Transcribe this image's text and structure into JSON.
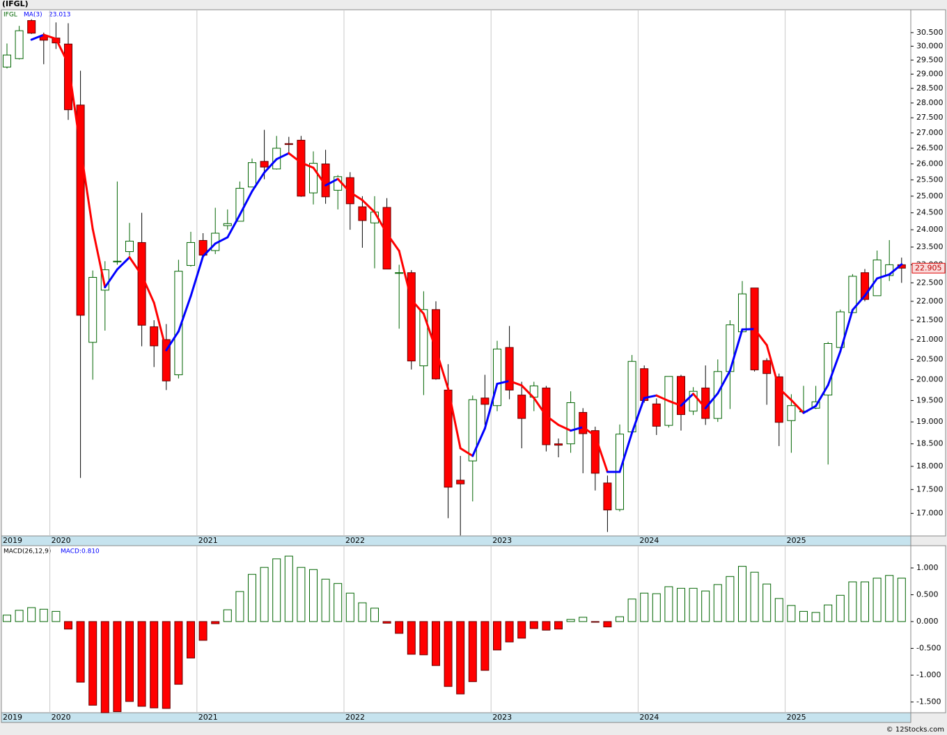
{
  "title": "(IFGL)",
  "footer": "© 12Stocks.com",
  "chart_data": [
    {
      "type": "candlestick",
      "symbol": "IFGL",
      "ma_label": "MA(3)",
      "ma_value": 23.013,
      "last_price": 22.905,
      "log_scale": true,
      "up_color": "#006400",
      "down_color": "#ff0000",
      "ma_up_color": "#0000ff",
      "ma_down_color": "#ff0000",
      "categories": [
        "2019",
        null,
        null,
        null,
        "2020",
        null,
        null,
        null,
        null,
        null,
        null,
        null,
        null,
        null,
        null,
        null,
        "2021",
        null,
        null,
        null,
        null,
        null,
        null,
        null,
        null,
        null,
        null,
        null,
        "2022",
        null,
        null,
        null,
        null,
        null,
        null,
        null,
        null,
        null,
        null,
        null,
        "2023",
        null,
        null,
        null,
        null,
        null,
        null,
        null,
        null,
        null,
        null,
        null,
        "2024",
        null,
        null,
        null,
        null,
        null,
        null,
        null,
        null,
        null,
        null,
        null,
        "2025",
        null,
        null,
        null,
        null,
        null,
        null,
        null,
        null,
        null
      ],
      "open": [
        29.25,
        29.55,
        30.95,
        30.38,
        30.3,
        30.08,
        27.93,
        20.93,
        22.3,
        23.1,
        23.37,
        23.63,
        21.33,
        21.0,
        20.12,
        22.98,
        23.69,
        23.4,
        24.12,
        24.25,
        25.28,
        26.08,
        25.84,
        26.65,
        26.76,
        25.1,
        26.0,
        25.18,
        25.57,
        24.68,
        24.2,
        24.66,
        22.76,
        22.78,
        20.34,
        21.78,
        19.75,
        17.7,
        18.12,
        19.56,
        19.38,
        20.8,
        19.63,
        19.58,
        19.8,
        18.5,
        18.5,
        19.22,
        18.8,
        17.64,
        17.08,
        18.77,
        20.27,
        19.42,
        18.92,
        20.08,
        19.25,
        19.8,
        19.08,
        20.2,
        21.2,
        22.36,
        20.47,
        20.07,
        19.03,
        19.25,
        19.32,
        19.63,
        20.8,
        21.7,
        22.78,
        22.15,
        22.7,
        23.0
      ],
      "high": [
        30.1,
        30.75,
        31.0,
        30.5,
        30.88,
        30.85,
        29.12,
        22.84,
        23.1,
        25.45,
        24.2,
        24.5,
        21.5,
        21.4,
        23.14,
        23.94,
        23.9,
        24.65,
        24.6,
        25.45,
        26.17,
        27.1,
        26.9,
        26.87,
        26.9,
        26.4,
        26.45,
        25.65,
        25.74,
        25.0,
        25.0,
        24.94,
        23.0,
        22.85,
        22.27,
        22.0,
        20.38,
        18.23,
        19.62,
        20.12,
        20.97,
        21.35,
        19.95,
        19.95,
        19.85,
        18.62,
        19.72,
        19.32,
        18.89,
        17.8,
        18.94,
        20.61,
        20.35,
        19.55,
        20.08,
        20.12,
        19.82,
        20.35,
        20.5,
        21.5,
        22.55,
        22.36,
        20.53,
        20.15,
        19.65,
        19.85,
        19.85,
        20.94,
        21.78,
        22.74,
        22.88,
        23.4,
        23.7,
        23.2
      ],
      "low": [
        29.2,
        29.52,
        30.45,
        29.35,
        29.9,
        27.43,
        17.75,
        20.0,
        21.23,
        23.0,
        23.25,
        20.83,
        20.31,
        19.75,
        20.03,
        22.95,
        23.25,
        23.3,
        24.0,
        24.25,
        25.28,
        25.52,
        25.82,
        26.3,
        24.98,
        24.75,
        24.77,
        24.6,
        24.0,
        23.48,
        22.9,
        22.88,
        21.28,
        20.25,
        19.63,
        20.0,
        16.9,
        16.55,
        17.25,
        18.93,
        19.25,
        19.53,
        18.4,
        19.25,
        18.33,
        18.2,
        18.3,
        17.85,
        17.48,
        16.62,
        17.04,
        18.74,
        19.45,
        18.7,
        18.87,
        18.8,
        19.16,
        18.93,
        19.0,
        19.3,
        21.2,
        20.2,
        19.4,
        18.45,
        18.3,
        19.22,
        19.3,
        18.04,
        20.76,
        21.7,
        22.0,
        22.15,
        22.55,
        22.5
      ],
      "close": [
        29.68,
        30.57,
        30.48,
        30.22,
        30.12,
        27.77,
        21.63,
        22.65,
        22.86,
        23.1,
        23.67,
        21.37,
        20.84,
        19.97,
        22.82,
        23.63,
        23.27,
        23.9,
        24.18,
        25.24,
        26.04,
        25.9,
        26.5,
        26.62,
        25.0,
        26.02,
        24.98,
        25.6,
        24.77,
        24.27,
        24.52,
        22.88,
        22.78,
        20.46,
        21.78,
        20.02,
        17.55,
        17.62,
        19.52,
        19.41,
        20.76,
        19.75,
        19.08,
        19.85,
        18.48,
        18.47,
        19.45,
        18.73,
        17.85,
        17.07,
        18.72,
        20.45,
        19.5,
        18.9,
        20.08,
        19.17,
        19.72,
        19.08,
        20.2,
        21.38,
        22.2,
        20.24,
        20.15,
        18.99,
        19.38,
        19.25,
        19.47,
        20.9,
        21.72,
        22.68,
        22.05,
        23.135,
        23.0,
        22.905
      ],
      "ma": [
        null,
        null,
        30.24,
        30.42,
        30.27,
        29.37,
        26.51,
        24.02,
        22.38,
        22.87,
        23.21,
        22.71,
        21.96,
        20.73,
        21.21,
        22.14,
        23.24,
        23.6,
        23.78,
        24.44,
        25.15,
        25.73,
        26.15,
        26.34,
        26.04,
        25.88,
        25.33,
        25.53,
        25.12,
        24.88,
        24.52,
        23.89,
        23.39,
        22.04,
        21.67,
        20.75,
        19.78,
        18.4,
        18.23,
        18.85,
        19.9,
        19.97,
        19.86,
        19.56,
        19.14,
        18.93,
        18.8,
        18.88,
        18.68,
        17.88,
        17.88,
        18.75,
        19.56,
        19.62,
        19.49,
        19.38,
        19.66,
        19.32,
        19.67,
        20.22,
        21.26,
        21.27,
        20.86,
        19.79,
        19.51,
        19.21,
        19.37,
        19.87,
        20.7,
        21.77,
        22.15,
        22.62,
        22.73,
        23.013
      ],
      "ylim": [
        16.54,
        31.36
      ],
      "yticks": [
        {
          "value": 17,
          "label": "17.000"
        },
        {
          "value": 17.5,
          "label": "17.500"
        },
        {
          "value": 18,
          "label": "18.000"
        },
        {
          "value": 18.5,
          "label": "18.500"
        },
        {
          "value": 19,
          "label": "19.000"
        },
        {
          "value": 19.5,
          "label": "19.500"
        },
        {
          "value": 20,
          "label": "20.000"
        },
        {
          "value": 20.5,
          "label": "20.500"
        },
        {
          "value": 21,
          "label": "21.000"
        },
        {
          "value": 21.5,
          "label": "21.500"
        },
        {
          "value": 22,
          "label": "22.000"
        },
        {
          "value": 22.5,
          "label": "22.500"
        },
        {
          "value": 23,
          "label": "23.000"
        },
        {
          "value": 23.5,
          "label": "23.500"
        },
        {
          "value": 24,
          "label": "24.000"
        },
        {
          "value": 24.5,
          "label": "24.500"
        },
        {
          "value": 25,
          "label": "25.000"
        },
        {
          "value": 25.5,
          "label": "25.500"
        },
        {
          "value": 26,
          "label": "26.000"
        },
        {
          "value": 26.5,
          "label": "26.500"
        },
        {
          "value": 27,
          "label": "27.000"
        },
        {
          "value": 27.5,
          "label": "27.500"
        },
        {
          "value": 28,
          "label": "28.000"
        },
        {
          "value": 28.5,
          "label": "28.500"
        },
        {
          "value": 29,
          "label": "29.000"
        },
        {
          "value": 29.5,
          "label": "29.500"
        },
        {
          "value": 30,
          "label": "30.000"
        },
        {
          "value": 30.5,
          "label": "30.500"
        }
      ]
    },
    {
      "type": "bar",
      "label": "MACD(26,12,9)",
      "value_label": "MACD:0.810",
      "pos_color": "#006400",
      "neg_color": "#ff0000",
      "values": [
        0.12,
        0.21,
        0.26,
        0.23,
        0.19,
        -0.14,
        -1.13,
        -1.56,
        -1.7,
        -1.68,
        -1.49,
        -1.58,
        -1.61,
        -1.62,
        -1.17,
        -0.68,
        -0.35,
        -0.04,
        0.22,
        0.56,
        0.88,
        1.01,
        1.17,
        1.22,
        1.01,
        0.97,
        0.79,
        0.71,
        0.53,
        0.35,
        0.25,
        -0.03,
        -0.22,
        -0.61,
        -0.62,
        -0.82,
        -1.21,
        -1.35,
        -1.12,
        -0.91,
        -0.53,
        -0.38,
        -0.31,
        -0.13,
        -0.16,
        -0.14,
        0.04,
        0.08,
        -0.01,
        -0.1,
        0.09,
        0.42,
        0.53,
        0.52,
        0.65,
        0.62,
        0.62,
        0.57,
        0.69,
        0.84,
        1.03,
        0.92,
        0.7,
        0.43,
        0.3,
        0.19,
        0.17,
        0.31,
        0.49,
        0.74,
        0.74,
        0.81,
        0.86,
        0.81
      ],
      "ylim": [
        -1.7,
        1.415
      ],
      "yticks": [
        {
          "value": 1,
          "label": "1.000"
        },
        {
          "value": 0.5,
          "label": "0.500"
        },
        {
          "value": 0,
          "label": "0.000"
        },
        {
          "value": -0.5,
          "label": "-0.500"
        },
        {
          "value": -1,
          "label": "-1.000"
        },
        {
          "value": -1.5,
          "label": "-1.500"
        }
      ]
    }
  ]
}
